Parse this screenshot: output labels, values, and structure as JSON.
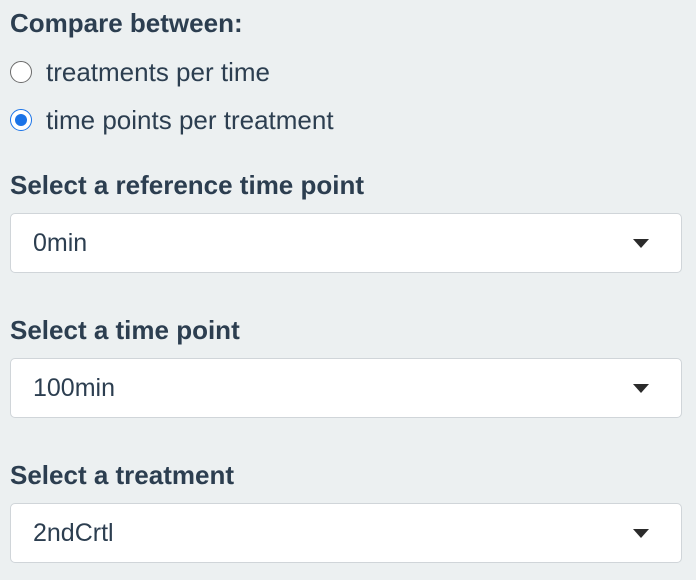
{
  "compare": {
    "label": "Compare between:",
    "options": [
      {
        "label": "treatments per time",
        "checked": false
      },
      {
        "label": "time points per treatment",
        "checked": true
      }
    ]
  },
  "reference_time": {
    "label": "Select a reference time point",
    "value": "0min"
  },
  "time_point": {
    "label": "Select a time point",
    "value": "100min"
  },
  "treatment": {
    "label": "Select a treatment",
    "value": "2ndCrtl"
  },
  "colors": {
    "background": "#ecf0f1",
    "text": "#2c3e50",
    "accent": "#1a73e8"
  }
}
